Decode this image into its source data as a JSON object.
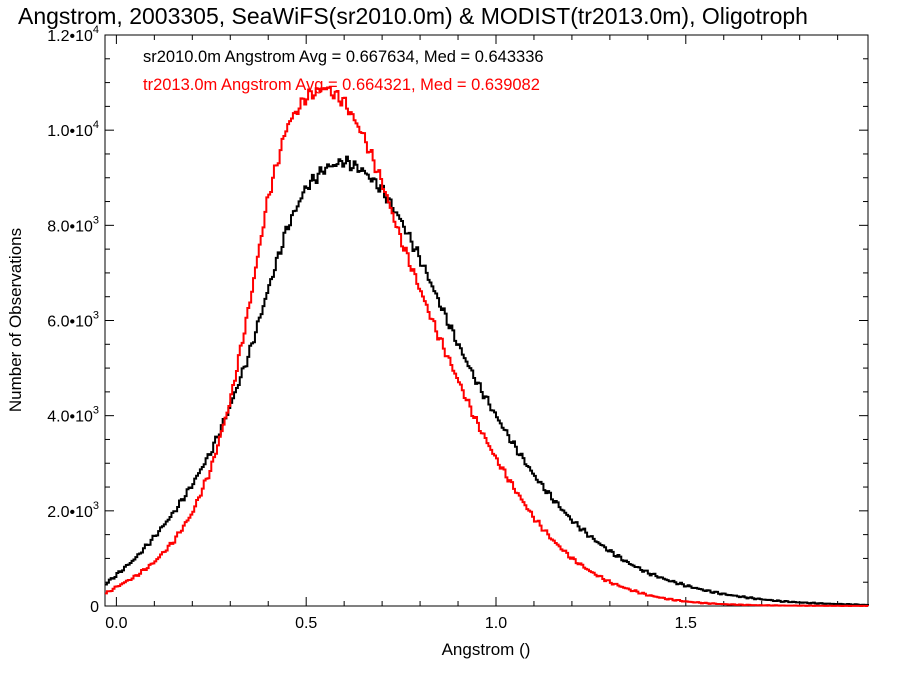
{
  "chart_data": {
    "type": "histogram-step",
    "title": "Angstrom, 2003305, SeaWiFS(sr2010.0m) & MODIST(tr2013.0m), Oligotroph",
    "xlabel": "Angstrom ()",
    "ylabel": "Number of Observations",
    "xlim": [
      -0.03,
      1.98
    ],
    "ylim": [
      0,
      12000
    ],
    "xticks": [
      {
        "value": 0.0,
        "label": "0.0"
      },
      {
        "value": 0.5,
        "label": "0.5"
      },
      {
        "value": 1.0,
        "label": "1.0"
      },
      {
        "value": 1.5,
        "label": "1.5"
      }
    ],
    "yticks": [
      {
        "value": 0,
        "mant": "0",
        "exp": ""
      },
      {
        "value": 2000,
        "mant": "2.0•10",
        "exp": "3"
      },
      {
        "value": 4000,
        "mant": "4.0•10",
        "exp": "3"
      },
      {
        "value": 6000,
        "mant": "6.0•10",
        "exp": "3"
      },
      {
        "value": 8000,
        "mant": "8.0•10",
        "exp": "3"
      },
      {
        "value": 10000,
        "mant": "1.0•10",
        "exp": "4"
      },
      {
        "value": 12000,
        "mant": "1.2•10",
        "exp": "4"
      }
    ],
    "annotations": [
      {
        "text": "sr2010.0m Angstrom Avg = 0.667634, Med = 0.643336",
        "color": "#000000"
      },
      {
        "text": "tr2013.0m Angstrom Avg = 0.664321, Med = 0.639082",
        "color": "#ff0000"
      }
    ],
    "x": [
      -0.03,
      0.0,
      0.05,
      0.1,
      0.15,
      0.2,
      0.25,
      0.3,
      0.35,
      0.4,
      0.45,
      0.5,
      0.55,
      0.6,
      0.65,
      0.7,
      0.75,
      0.8,
      0.85,
      0.9,
      0.95,
      1.0,
      1.05,
      1.1,
      1.15,
      1.2,
      1.25,
      1.3,
      1.35,
      1.4,
      1.45,
      1.5,
      1.55,
      1.6,
      1.65,
      1.7,
      1.75,
      1.8,
      1.85,
      1.9,
      1.95,
      1.98
    ],
    "series": [
      {
        "color": "#000000",
        "values": [
          450,
          650,
          1000,
          1450,
          1950,
          2550,
          3250,
          4200,
          5300,
          6650,
          7950,
          8800,
          9200,
          9350,
          9150,
          8750,
          8100,
          7300,
          6400,
          5500,
          4700,
          4000,
          3350,
          2750,
          2250,
          1800,
          1450,
          1150,
          900,
          700,
          550,
          430,
          330,
          250,
          190,
          140,
          100,
          75,
          55,
          40,
          30,
          20
        ]
      },
      {
        "color": "#ff0000",
        "values": [
          250,
          400,
          620,
          920,
          1350,
          1950,
          2900,
          4300,
          6300,
          8600,
          10100,
          10700,
          10900,
          10600,
          9900,
          8900,
          7700,
          6650,
          5650,
          4750,
          3850,
          3100,
          2450,
          1850,
          1380,
          1000,
          720,
          500,
          350,
          230,
          150,
          95,
          60,
          38,
          24,
          15,
          10,
          7,
          5,
          3,
          2,
          1
        ]
      }
    ]
  }
}
